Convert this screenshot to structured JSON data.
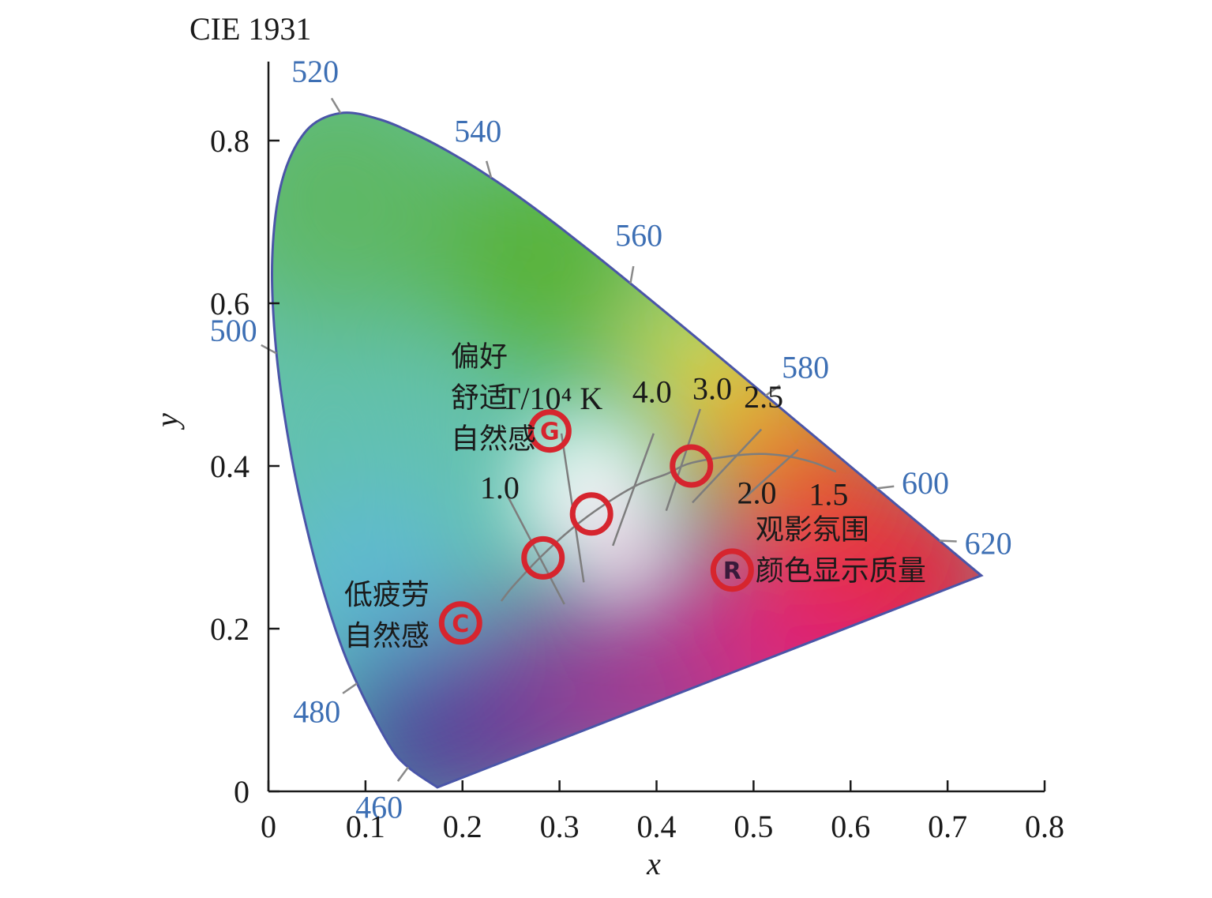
{
  "chart_data": {
    "type": "diagram",
    "title": "CIE 1931",
    "xlabel": "x",
    "ylabel": "y",
    "xlim": [
      0,
      0.8
    ],
    "ylim": [
      0,
      0.8
    ],
    "x_ticks": [
      "0",
      "0.1",
      "0.2",
      "0.3",
      "0.4",
      "0.5",
      "0.6",
      "0.7",
      "0.8"
    ],
    "y_ticks": [
      "0",
      "0.2",
      "0.4",
      "0.6",
      "0.8"
    ],
    "spectral_locus": [
      {
        "x": 0.1741,
        "y": 0.005,
        "label": ""
      },
      {
        "x": 0.144,
        "y": 0.0297,
        "label": "460"
      },
      {
        "x": 0.1241,
        "y": 0.0578,
        "label": ""
      },
      {
        "x": 0.0913,
        "y": 0.1327,
        "label": "480"
      },
      {
        "x": 0.0687,
        "y": 0.2007,
        "label": ""
      },
      {
        "x": 0.0454,
        "y": 0.295,
        "label": ""
      },
      {
        "x": 0.0235,
        "y": 0.4127,
        "label": ""
      },
      {
        "x": 0.0082,
        "y": 0.5384,
        "label": "500"
      },
      {
        "x": 0.0039,
        "y": 0.6548,
        "label": ""
      },
      {
        "x": 0.0139,
        "y": 0.7502,
        "label": ""
      },
      {
        "x": 0.0389,
        "y": 0.812,
        "label": ""
      },
      {
        "x": 0.0743,
        "y": 0.8338,
        "label": "520"
      },
      {
        "x": 0.1142,
        "y": 0.8262,
        "label": ""
      },
      {
        "x": 0.1547,
        "y": 0.8059,
        "label": ""
      },
      {
        "x": 0.1929,
        "y": 0.7816,
        "label": ""
      },
      {
        "x": 0.2296,
        "y": 0.7543,
        "label": "540"
      },
      {
        "x": 0.2658,
        "y": 0.7243,
        "label": ""
      },
      {
        "x": 0.3016,
        "y": 0.6923,
        "label": ""
      },
      {
        "x": 0.3373,
        "y": 0.6589,
        "label": ""
      },
      {
        "x": 0.3731,
        "y": 0.6245,
        "label": "560"
      },
      {
        "x": 0.4087,
        "y": 0.5896,
        "label": ""
      },
      {
        "x": 0.4441,
        "y": 0.5547,
        "label": ""
      },
      {
        "x": 0.4788,
        "y": 0.5202,
        "label": ""
      },
      {
        "x": 0.5125,
        "y": 0.4866,
        "label": "580"
      },
      {
        "x": 0.5448,
        "y": 0.4544,
        "label": ""
      },
      {
        "x": 0.5752,
        "y": 0.4242,
        "label": ""
      },
      {
        "x": 0.6029,
        "y": 0.3965,
        "label": ""
      },
      {
        "x": 0.627,
        "y": 0.3725,
        "label": "600"
      },
      {
        "x": 0.6482,
        "y": 0.3514,
        "label": ""
      },
      {
        "x": 0.6658,
        "y": 0.334,
        "label": ""
      },
      {
        "x": 0.6801,
        "y": 0.3197,
        "label": ""
      },
      {
        "x": 0.6915,
        "y": 0.3083,
        "label": "620"
      },
      {
        "x": 0.7006,
        "y": 0.2993,
        "label": ""
      },
      {
        "x": 0.7079,
        "y": 0.292,
        "label": ""
      },
      {
        "x": 0.7347,
        "y": 0.2653,
        "label": ""
      }
    ],
    "planckian_locus": [
      {
        "x": 0.24,
        "y": 0.234
      },
      {
        "x": 0.252,
        "y": 0.252
      },
      {
        "x": 0.2806,
        "y": 0.2883
      },
      {
        "x": 0.3135,
        "y": 0.3237
      },
      {
        "x": 0.3451,
        "y": 0.3516
      },
      {
        "x": 0.3805,
        "y": 0.3768
      },
      {
        "x": 0.41,
        "y": 0.39
      },
      {
        "x": 0.4369,
        "y": 0.4041
      },
      {
        "x": 0.49,
        "y": 0.414
      },
      {
        "x": 0.5267,
        "y": 0.4133
      },
      {
        "x": 0.56,
        "y": 0.405
      },
      {
        "x": 0.585,
        "y": 0.393
      }
    ],
    "isotherm_labels": [
      {
        "text": "T/10⁴ K",
        "x": 0.24,
        "y": 0.47
      },
      {
        "text": "1.0",
        "x": 0.218,
        "y": 0.36
      },
      {
        "text": "4.0",
        "x": 0.375,
        "y": 0.478
      },
      {
        "text": "3.0",
        "x": 0.437,
        "y": 0.482
      },
      {
        "text": "2.5",
        "x": 0.49,
        "y": 0.472
      },
      {
        "text": "2.0",
        "x": 0.483,
        "y": 0.354
      },
      {
        "text": "1.5",
        "x": 0.557,
        "y": 0.352
      }
    ],
    "isotherms": [
      {
        "from": [
          0.247,
          0.362
        ],
        "to": [
          0.305,
          0.23
        ]
      },
      {
        "from": [
          0.302,
          0.44
        ],
        "to": [
          0.325,
          0.257
        ]
      },
      {
        "from": [
          0.397,
          0.44
        ],
        "to": [
          0.355,
          0.302
        ]
      },
      {
        "from": [
          0.445,
          0.47
        ],
        "to": [
          0.41,
          0.345
        ]
      },
      {
        "from": [
          0.508,
          0.445
        ],
        "to": [
          0.437,
          0.355
        ]
      },
      {
        "from": [
          0.546,
          0.42
        ],
        "to": [
          0.49,
          0.36
        ]
      }
    ],
    "markers": [
      {
        "x": 0.283,
        "y": 0.287,
        "label": ""
      },
      {
        "x": 0.333,
        "y": 0.341,
        "label": ""
      },
      {
        "x": 0.436,
        "y": 0.4,
        "label": ""
      },
      {
        "x": 0.29,
        "y": 0.443,
        "label": "G"
      },
      {
        "x": 0.198,
        "y": 0.207,
        "label": "C"
      },
      {
        "x": 0.478,
        "y": 0.272,
        "label": "R"
      }
    ],
    "annotations": [
      {
        "lines": [
          "偏好",
          "舒适",
          "自然感"
        ],
        "x": 0.188,
        "y": 0.523
      },
      {
        "lines": [
          "低疲劳",
          "自然感"
        ],
        "x": 0.078,
        "y": 0.23
      },
      {
        "lines": [
          "观影氛围",
          "颜色显示质量"
        ],
        "x": 0.502,
        "y": 0.31
      }
    ],
    "colors": {
      "wavelength_label": "#3d6fb4",
      "marker": "#d6252e",
      "locus_outline": "#4a55a8",
      "planck_line": "#7d7d7d"
    }
  }
}
